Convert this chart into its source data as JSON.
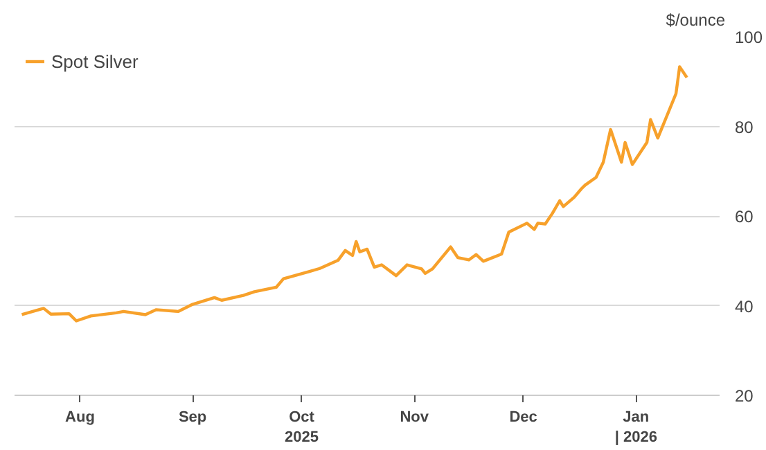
{
  "chart_data": {
    "type": "line",
    "ylabel": "$/ounce",
    "annotations": [
      "2025",
      "| 2026"
    ],
    "x": [
      "2025-07-16",
      "2025-07-22",
      "2025-07-24",
      "2025-07-29",
      "2025-07-31",
      "2025-08-04",
      "2025-08-11",
      "2025-08-13",
      "2025-08-19",
      "2025-08-22",
      "2025-08-28",
      "2025-09-01",
      "2025-09-07",
      "2025-09-09",
      "2025-09-15",
      "2025-09-18",
      "2025-09-24",
      "2025-09-26",
      "2025-10-03",
      "2025-10-06",
      "2025-10-11",
      "2025-10-13",
      "2025-10-15",
      "2025-10-16",
      "2025-10-17",
      "2025-10-19",
      "2025-10-21",
      "2025-10-23",
      "2025-10-27",
      "2025-10-30",
      "2025-11-03",
      "2025-11-04",
      "2025-11-06",
      "2025-11-11",
      "2025-11-13",
      "2025-11-16",
      "2025-11-18",
      "2025-11-20",
      "2025-11-25",
      "2025-11-27",
      "2025-12-02",
      "2025-12-04",
      "2025-12-05",
      "2025-12-07",
      "2025-12-09",
      "2025-12-11",
      "2025-12-12",
      "2025-12-15",
      "2025-12-17",
      "2025-12-18",
      "2025-12-21",
      "2025-12-23",
      "2025-12-25",
      "2025-12-28",
      "2025-12-29",
      "2025-12-31",
      "2026-01-04",
      "2026-01-05",
      "2026-01-07",
      "2026-01-12",
      "2026-01-13",
      "2026-01-15"
    ],
    "series": [
      {
        "name": "Spot Silver",
        "color": "#f7a12b",
        "values": [
          38.0,
          39.4,
          38.1,
          38.2,
          36.6,
          37.7,
          38.4,
          38.7,
          38.0,
          39.1,
          38.7,
          40.3,
          41.8,
          41.2,
          42.3,
          43.1,
          44.1,
          46.0,
          47.6,
          48.3,
          50.1,
          52.3,
          51.2,
          54.3,
          52.0,
          52.6,
          48.6,
          49.1,
          46.7,
          49.1,
          48.2,
          47.2,
          48.2,
          53.1,
          50.7,
          50.2,
          51.4,
          49.9,
          51.5,
          56.4,
          58.4,
          57.0,
          58.4,
          58.2,
          60.6,
          63.4,
          62.1,
          64.2,
          66.1,
          66.9,
          68.6,
          72.0,
          79.3,
          72.0,
          76.4,
          71.5,
          76.4,
          81.5,
          77.4,
          87.3,
          93.3,
          90.9
        ]
      }
    ],
    "xlim": [
      "2025-07-14",
      "2026-01-24"
    ],
    "xticks": [
      {
        "value": "2025-08-01",
        "label": "Aug"
      },
      {
        "value": "2025-09-01",
        "label": "Sep"
      },
      {
        "value": "2025-10-01",
        "label": "Oct"
      },
      {
        "value": "2025-11-01",
        "label": "Nov"
      },
      {
        "value": "2025-12-01",
        "label": "Dec"
      },
      {
        "value": "2026-01-01",
        "label": "Jan"
      }
    ],
    "ylim": [
      20,
      100
    ],
    "yticks": [
      20,
      40,
      60,
      80,
      100
    ],
    "grid": "y",
    "legend": "top left",
    "line_style": "solid"
  }
}
